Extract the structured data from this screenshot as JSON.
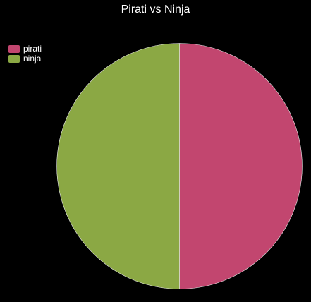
{
  "chart_data": {
    "type": "pie",
    "title": "Pirati vs Ninja",
    "legend_position": "top-left",
    "slices": [
      {
        "label": "pirati",
        "value": 50,
        "color": "#c2466f"
      },
      {
        "label": "ninja",
        "value": 50,
        "color": "#8ba844"
      }
    ]
  }
}
